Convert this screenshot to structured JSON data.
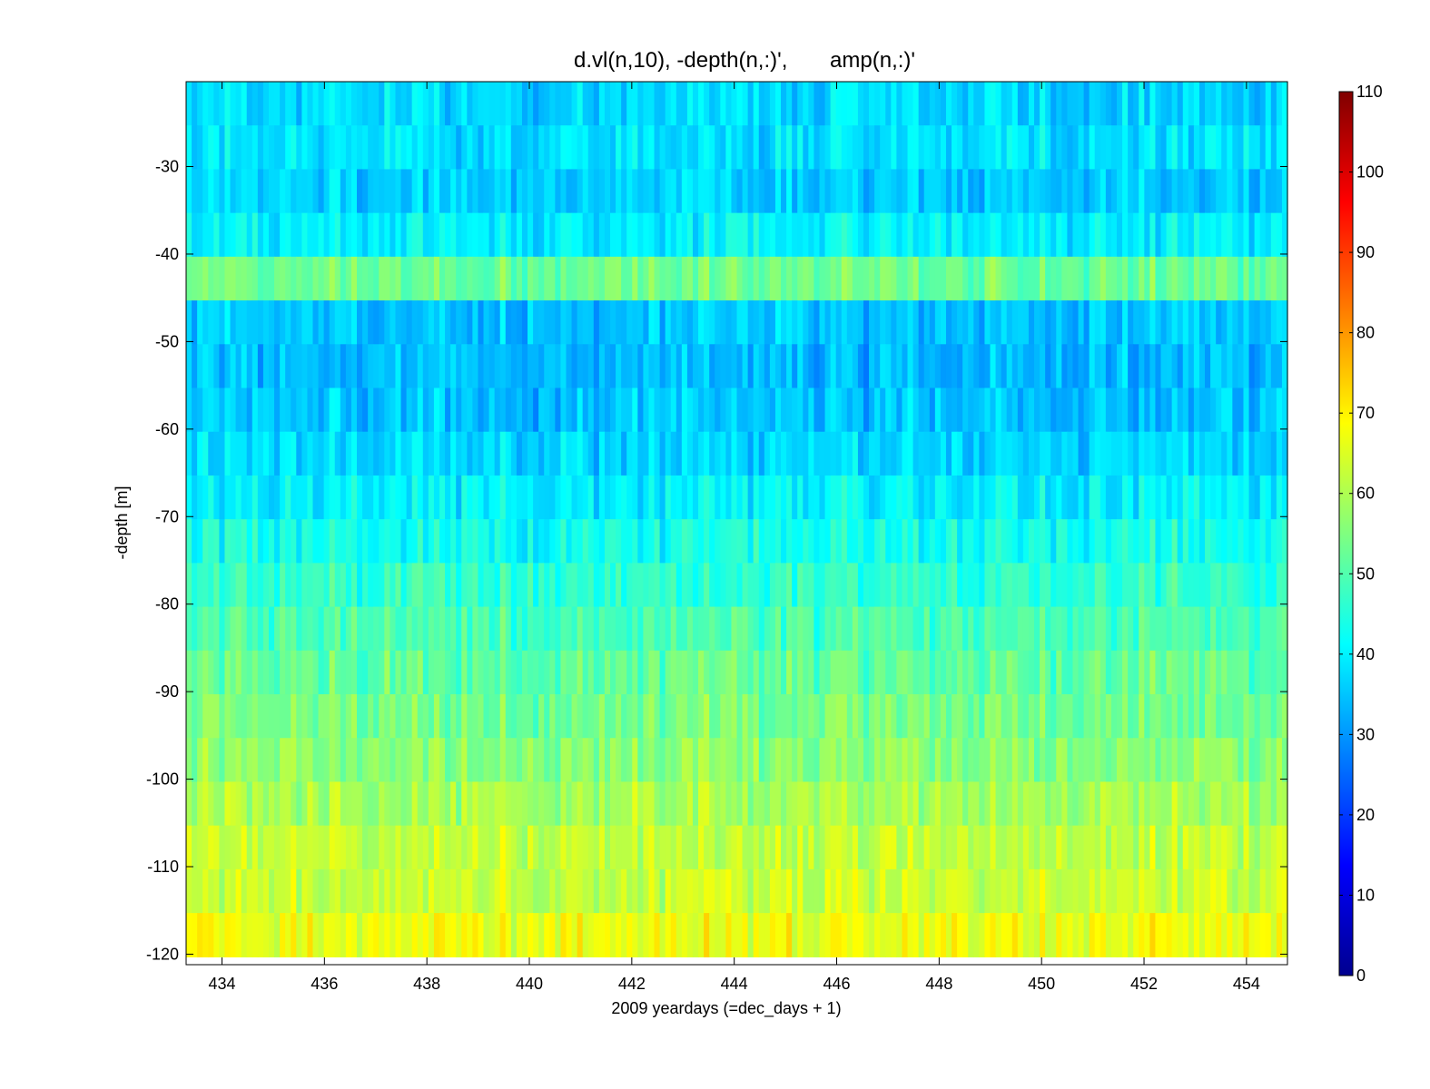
{
  "chart_data": {
    "type": "heatmap",
    "title": "d.vl(n,10), -depth(n,:)',       amp(n,:)'",
    "xlabel": "2009 yeardays (=dec_days + 1)",
    "ylabel": "-depth [m]",
    "xlim": [
      433.3,
      454.8
    ],
    "ylim": [
      -121.2,
      -20.3
    ],
    "x_ticks": [
      434,
      436,
      438,
      440,
      442,
      444,
      446,
      448,
      450,
      452,
      454
    ],
    "y_ticks": [
      -120,
      -110,
      -100,
      -90,
      -80,
      -70,
      -60,
      -50,
      -40,
      -30
    ],
    "colorbar": {
      "range": [
        0,
        110
      ],
      "ticks": [
        0,
        10,
        20,
        30,
        40,
        50,
        60,
        70,
        80,
        90,
        100,
        110
      ],
      "colormap": "jet"
    },
    "bins": [
      {
        "depth": -22.8,
        "amp": 37
      },
      {
        "depth": -27.8,
        "amp": 38
      },
      {
        "depth": -32.8,
        "amp": 36
      },
      {
        "depth": -37.8,
        "amp": 40
      },
      {
        "depth": -42.8,
        "amp": 53
      },
      {
        "depth": -47.8,
        "amp": 35
      },
      {
        "depth": -52.8,
        "amp": 34
      },
      {
        "depth": -57.8,
        "amp": 35
      },
      {
        "depth": -62.8,
        "amp": 37
      },
      {
        "depth": -67.8,
        "amp": 40
      },
      {
        "depth": -72.8,
        "amp": 43
      },
      {
        "depth": -77.8,
        "amp": 46
      },
      {
        "depth": -82.8,
        "amp": 49
      },
      {
        "depth": -87.8,
        "amp": 52
      },
      {
        "depth": -92.8,
        "amp": 54
      },
      {
        "depth": -97.8,
        "amp": 56
      },
      {
        "depth": -102.8,
        "amp": 59
      },
      {
        "depth": -107.8,
        "amp": 62
      },
      {
        "depth": -112.8,
        "amp": 63
      },
      {
        "depth": -117.8,
        "amp": 67
      }
    ],
    "grid": false,
    "legend": "colorbar-right"
  }
}
